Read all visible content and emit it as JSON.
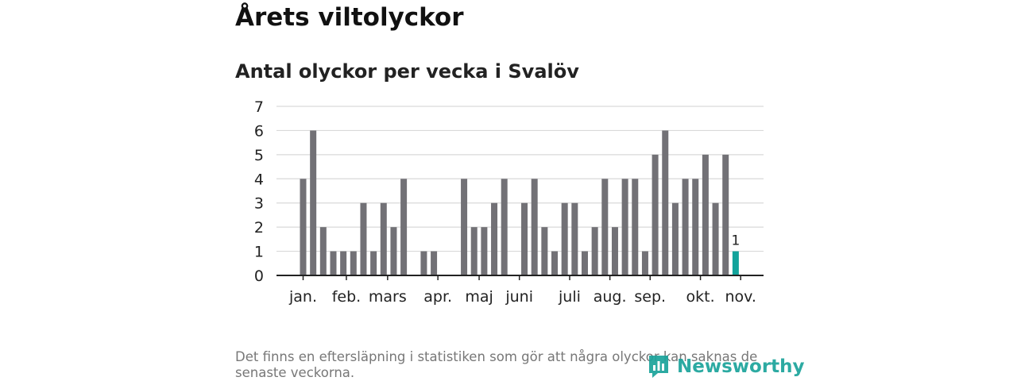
{
  "header": {
    "title": "Årets viltolyckor",
    "subtitle": "Antal olyckor per vecka i Svalöv"
  },
  "chart_data": {
    "type": "bar",
    "title": "Antal olyckor per vecka i Svalöv",
    "xlabel": "",
    "ylabel": "",
    "ylim": [
      0,
      7
    ],
    "yticks": [
      0,
      1,
      2,
      3,
      4,
      5,
      6,
      7
    ],
    "grid": true,
    "weeks": [
      1,
      2,
      3,
      4,
      5,
      6,
      7,
      8,
      9,
      10,
      11,
      12,
      13,
      14,
      15,
      16,
      17,
      18,
      19,
      20,
      21,
      22,
      23,
      24,
      25,
      26,
      27,
      28,
      29,
      30,
      31,
      32,
      33,
      34,
      35,
      36,
      37,
      38,
      39,
      40,
      41,
      42,
      43,
      44
    ],
    "values": [
      4,
      6,
      2,
      1,
      1,
      1,
      3,
      1,
      3,
      2,
      4,
      0,
      1,
      1,
      0,
      0,
      4,
      2,
      2,
      3,
      4,
      0,
      3,
      4,
      2,
      1,
      3,
      3,
      1,
      2,
      4,
      2,
      4,
      4,
      1,
      5,
      6,
      3,
      4,
      4,
      5,
      3,
      5,
      1
    ],
    "highlight": {
      "week": 44,
      "value": 1,
      "label": "1"
    },
    "month_labels": [
      {
        "label": "jan.",
        "week": 1
      },
      {
        "label": "feb.",
        "week": 5.3
      },
      {
        "label": "mars",
        "week": 9.4
      },
      {
        "label": "apr.",
        "week": 14.4
      },
      {
        "label": "maj",
        "week": 18.5
      },
      {
        "label": "juni",
        "week": 22.5
      },
      {
        "label": "juli",
        "week": 27.5
      },
      {
        "label": "aug.",
        "week": 31.5
      },
      {
        "label": "sep.",
        "week": 35.5
      },
      {
        "label": "okt.",
        "week": 40.5
      },
      {
        "label": "nov.",
        "week": 44.5
      }
    ],
    "colors": {
      "bar": "#727176",
      "highlight": "#12a39b",
      "grid": "#d9d9d9",
      "axis": "#222222"
    }
  },
  "footer": {
    "note": "Det finns en eftersläpning i statistiken som gör att några olyckor kan saknas de senaste veckorna.",
    "logo_text": "Newsworthy"
  }
}
